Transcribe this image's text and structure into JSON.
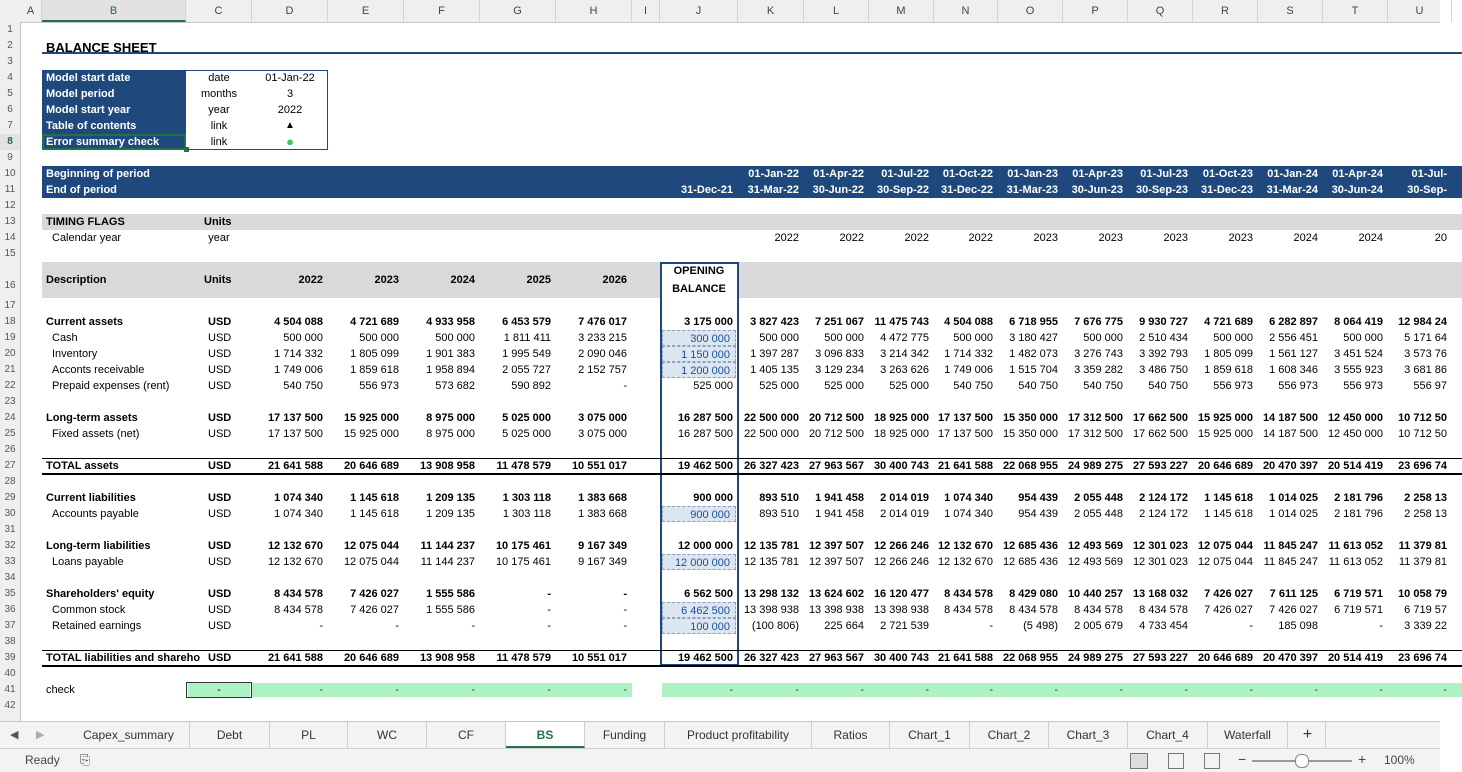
{
  "columns": [
    "A",
    "B",
    "C",
    "D",
    "E",
    "F",
    "G",
    "H",
    "I",
    "J",
    "K",
    "L",
    "M",
    "N",
    "O",
    "P",
    "Q",
    "R",
    "S",
    "T",
    "U"
  ],
  "rows": [
    "1",
    "2",
    "3",
    "4",
    "5",
    "6",
    "7",
    "8",
    "9",
    "10",
    "11",
    "12",
    "13",
    "14",
    "15",
    "16",
    "17",
    "18",
    "19",
    "20",
    "21",
    "22",
    "23",
    "24",
    "25",
    "26",
    "27",
    "28",
    "29",
    "30",
    "31",
    "32",
    "33",
    "34",
    "35",
    "36",
    "37",
    "38",
    "39",
    "40",
    "41",
    "42"
  ],
  "title": "BALANCE SHEET",
  "info": [
    {
      "label": "Model start date",
      "unit": "date",
      "value": "01-Jan-22"
    },
    {
      "label": "Model period",
      "unit": "months",
      "value": "3"
    },
    {
      "label": "Model start year",
      "unit": "year",
      "value": "2022"
    },
    {
      "label": "Table of contents",
      "unit": "link",
      "value": "▲"
    },
    {
      "label": "Error summary check",
      "unit": "link",
      "value": "●"
    }
  ],
  "period": {
    "begin_label": "Beginning of period",
    "end_label": "End of period",
    "opening_end": "31-Dec-21",
    "begin": [
      "01-Jan-22",
      "01-Apr-22",
      "01-Jul-22",
      "01-Oct-22",
      "01-Jan-23",
      "01-Apr-23",
      "01-Jul-23",
      "01-Oct-23",
      "01-Jan-24",
      "01-Apr-24",
      "01-Jul-"
    ],
    "end": [
      "31-Mar-22",
      "30-Jun-22",
      "30-Sep-22",
      "31-Dec-22",
      "31-Mar-23",
      "30-Jun-23",
      "30-Sep-23",
      "31-Dec-23",
      "31-Mar-24",
      "30-Jun-24",
      "30-Sep-"
    ]
  },
  "timing": {
    "header": "TIMING FLAGS",
    "units_header": "Units",
    "label": "Calendar year",
    "unit": "year",
    "values": [
      "2022",
      "2022",
      "2022",
      "2022",
      "2023",
      "2023",
      "2023",
      "2023",
      "2024",
      "2024",
      "20"
    ]
  },
  "table_header": {
    "description": "Description",
    "units": "Units",
    "years": [
      "2022",
      "2023",
      "2024",
      "2025",
      "2026"
    ],
    "opening1": "OPENING",
    "opening2": "BALANCE"
  },
  "table_rows": [
    {
      "row": 18,
      "label": "Current assets",
      "units": "USD",
      "bold": true,
      "y": [
        "4 504 088",
        "4 721 689",
        "4 933 958",
        "6 453 579",
        "7 476 017"
      ],
      "open": "3 175 000",
      "q": [
        "3 827 423",
        "7 251 067",
        "11 475 743",
        "4 504 088",
        "6 718 955",
        "7 676 775",
        "9 930 727",
        "4 721 689",
        "6 282 897",
        "8 064 419",
        "12 984 24"
      ]
    },
    {
      "row": 19,
      "label": "Cash",
      "units": "USD",
      "indent": true,
      "y": [
        "500 000",
        "500 000",
        "500 000",
        "1 811 411",
        "3 233 215"
      ],
      "open": "300 000",
      "input": true,
      "q": [
        "500 000",
        "500 000",
        "4 472 775",
        "500 000",
        "3 180 427",
        "500 000",
        "2 510 434",
        "500 000",
        "2 556 451",
        "500 000",
        "5 171 64"
      ]
    },
    {
      "row": 20,
      "label": "Inventory",
      "units": "USD",
      "indent": true,
      "y": [
        "1 714 332",
        "1 805 099",
        "1 901 383",
        "1 995 549",
        "2 090 046"
      ],
      "open": "1 150 000",
      "input": true,
      "q": [
        "1 397 287",
        "3 096 833",
        "3 214 342",
        "1 714 332",
        "1 482 073",
        "3 276 743",
        "3 392 793",
        "1 805 099",
        "1 561 127",
        "3 451 524",
        "3 573 76"
      ]
    },
    {
      "row": 21,
      "label": "Acconts receivable",
      "units": "USD",
      "indent": true,
      "y": [
        "1 749 006",
        "1 859 618",
        "1 958 894",
        "2 055 727",
        "2 152 757"
      ],
      "open": "1 200 000",
      "input": true,
      "q": [
        "1 405 135",
        "3 129 234",
        "3 263 626",
        "1 749 006",
        "1 515 704",
        "3 359 282",
        "3 486 750",
        "1 859 618",
        "1 608 346",
        "3 555 923",
        "3 681 86"
      ]
    },
    {
      "row": 22,
      "label": "Prepaid expenses (rent)",
      "units": "USD",
      "indent": true,
      "y": [
        "540 750",
        "556 973",
        "573 682",
        "590 892",
        "-"
      ],
      "open": "525 000",
      "q": [
        "525 000",
        "525 000",
        "525 000",
        "540 750",
        "540 750",
        "540 750",
        "540 750",
        "556 973",
        "556 973",
        "556 973",
        "556 97"
      ]
    },
    {
      "row": 24,
      "label": "Long-term assets",
      "units": "USD",
      "bold": true,
      "y": [
        "17 137 500",
        "15 925 000",
        "8 975 000",
        "5 025 000",
        "3 075 000"
      ],
      "open": "16 287 500",
      "q": [
        "22 500 000",
        "20 712 500",
        "18 925 000",
        "17 137 500",
        "15 350 000",
        "17 312 500",
        "17 662 500",
        "15 925 000",
        "14 187 500",
        "12 450 000",
        "10 712 50"
      ]
    },
    {
      "row": 25,
      "label": "Fixed assets (net)",
      "units": "USD",
      "indent": true,
      "y": [
        "17 137 500",
        "15 925 000",
        "8 975 000",
        "5 025 000",
        "3 075 000"
      ],
      "open": "16 287 500",
      "q": [
        "22 500 000",
        "20 712 500",
        "18 925 000",
        "17 137 500",
        "15 350 000",
        "17 312 500",
        "17 662 500",
        "15 925 000",
        "14 187 500",
        "12 450 000",
        "10 712 50"
      ]
    },
    {
      "row": 27,
      "label": "TOTAL assets",
      "units": "USD",
      "bold": true,
      "total": true,
      "y": [
        "21 641 588",
        "20 646 689",
        "13 908 958",
        "11 478 579",
        "10 551 017"
      ],
      "open": "19 462 500",
      "q": [
        "26 327 423",
        "27 963 567",
        "30 400 743",
        "21 641 588",
        "22 068 955",
        "24 989 275",
        "27 593 227",
        "20 646 689",
        "20 470 397",
        "20 514 419",
        "23 696 74"
      ]
    },
    {
      "row": 29,
      "label": "Current liabilities",
      "units": "USD",
      "bold": true,
      "y": [
        "1 074 340",
        "1 145 618",
        "1 209 135",
        "1 303 118",
        "1 383 668"
      ],
      "open": "900 000",
      "q": [
        "893 510",
        "1 941 458",
        "2 014 019",
        "1 074 340",
        "954 439",
        "2 055 448",
        "2 124 172",
        "1 145 618",
        "1 014 025",
        "2 181 796",
        "2 258 13"
      ]
    },
    {
      "row": 30,
      "label": "Accounts payable",
      "units": "USD",
      "indent": true,
      "y": [
        "1 074 340",
        "1 145 618",
        "1 209 135",
        "1 303 118",
        "1 383 668"
      ],
      "open": "900 000",
      "input": true,
      "q": [
        "893 510",
        "1 941 458",
        "2 014 019",
        "1 074 340",
        "954 439",
        "2 055 448",
        "2 124 172",
        "1 145 618",
        "1 014 025",
        "2 181 796",
        "2 258 13"
      ]
    },
    {
      "row": 32,
      "label": "Long-term liabilities",
      "units": "USD",
      "bold": true,
      "y": [
        "12 132 670",
        "12 075 044",
        "11 144 237",
        "10 175 461",
        "9 167 349"
      ],
      "open": "12 000 000",
      "q": [
        "12 135 781",
        "12 397 507",
        "12 266 246",
        "12 132 670",
        "12 685 436",
        "12 493 569",
        "12 301 023",
        "12 075 044",
        "11 845 247",
        "11 613 052",
        "11 379 81"
      ]
    },
    {
      "row": 33,
      "label": "Loans payable",
      "units": "USD",
      "indent": true,
      "y": [
        "12 132 670",
        "12 075 044",
        "11 144 237",
        "10 175 461",
        "9 167 349"
      ],
      "open": "12 000 000",
      "input": true,
      "q": [
        "12 135 781",
        "12 397 507",
        "12 266 246",
        "12 132 670",
        "12 685 436",
        "12 493 569",
        "12 301 023",
        "12 075 044",
        "11 845 247",
        "11 613 052",
        "11 379 81"
      ]
    },
    {
      "row": 35,
      "label": "Shareholders' equity",
      "units": "USD",
      "bold": true,
      "y": [
        "8 434 578",
        "7 426 027",
        "1 555 586",
        "-",
        "-"
      ],
      "open": "6 562 500",
      "q": [
        "13 298 132",
        "13 624 602",
        "16 120 477",
        "8 434 578",
        "8 429 080",
        "10 440 257",
        "13 168 032",
        "7 426 027",
        "7 611 125",
        "6 719 571",
        "10 058 79"
      ]
    },
    {
      "row": 36,
      "label": "Common stock",
      "units": "USD",
      "indent": true,
      "y": [
        "8 434 578",
        "7 426 027",
        "1 555 586",
        "-",
        "-"
      ],
      "open": "6 462 500",
      "input": true,
      "q": [
        "13 398 938",
        "13 398 938",
        "13 398 938",
        "8 434 578",
        "8 434 578",
        "8 434 578",
        "8 434 578",
        "7 426 027",
        "7 426 027",
        "6 719 571",
        "6 719 57"
      ]
    },
    {
      "row": 37,
      "label": "Retained earnings",
      "units": "USD",
      "indent": true,
      "y": [
        "-",
        "-",
        "-",
        "-",
        "-"
      ],
      "open": "100 000",
      "input": true,
      "q": [
        "(100 806)",
        "225 664",
        "2 721 539",
        "-",
        "(5 498)",
        "2 005 679",
        "4 733 454",
        "-",
        "185 098",
        "-",
        "3 339 22"
      ]
    },
    {
      "row": 39,
      "label": "TOTAL liabilities and shareho",
      "units": "USD",
      "bold": true,
      "total": true,
      "y": [
        "21 641 588",
        "20 646 689",
        "13 908 958",
        "11 478 579",
        "10 551 017"
      ],
      "open": "19 462 500",
      "q": [
        "26 327 423",
        "27 963 567",
        "30 400 743",
        "21 641 588",
        "22 068 955",
        "24 989 275",
        "27 593 227",
        "20 646 689",
        "20 470 397",
        "20 514 419",
        "23 696 74"
      ]
    }
  ],
  "check": {
    "label": "check",
    "dash": "-"
  },
  "tabs": [
    "Capex_summary",
    "Debt",
    "PL",
    "WC",
    "CF",
    "BS",
    "Funding",
    "Product profitability",
    "Ratios",
    "Chart_1",
    "Chart_2",
    "Chart_3",
    "Chart_4",
    "Waterfall"
  ],
  "active_tab": "BS",
  "add_sheet": "+",
  "status": {
    "ready": "Ready",
    "zoom": "100%"
  },
  "colors": {
    "navy": "#1f497d",
    "header_gray": "#d9d9d9",
    "check_green": "#aef1c4",
    "input_fill": "#dce6f1",
    "input_text": "#1f4e99"
  }
}
